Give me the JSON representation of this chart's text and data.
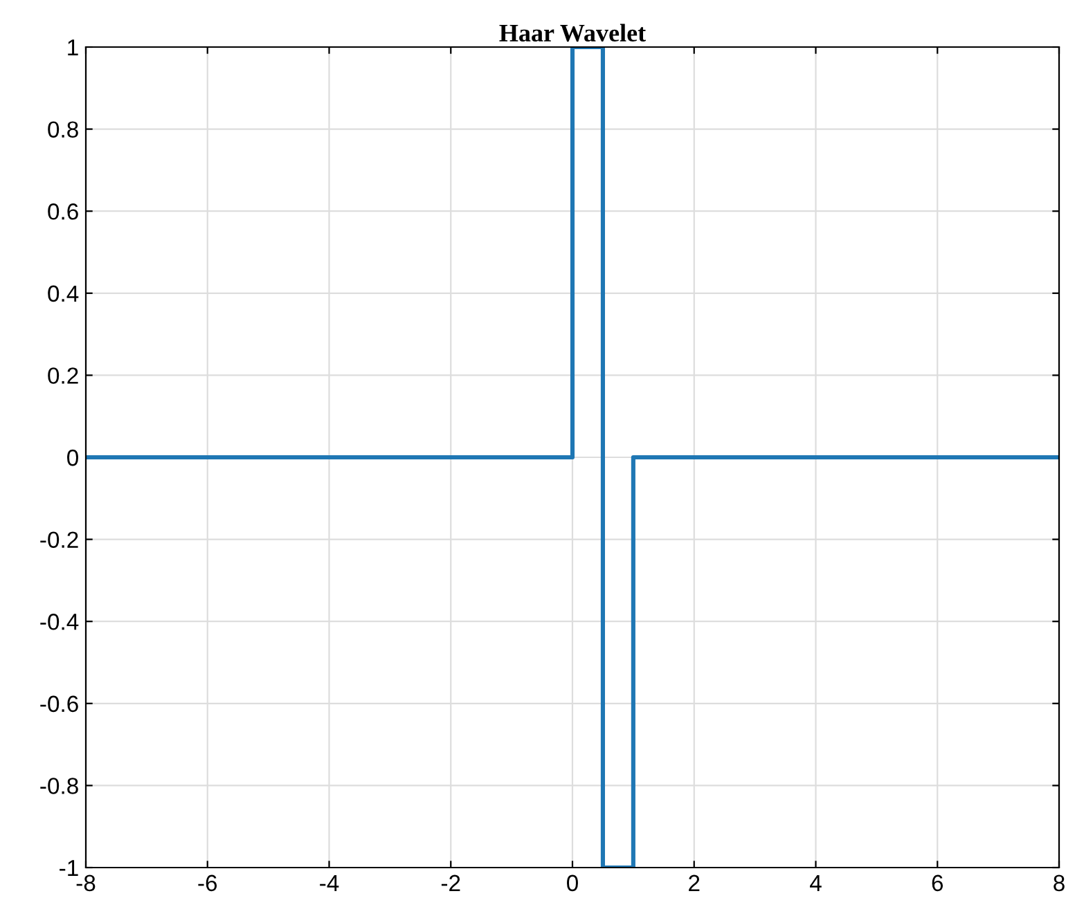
{
  "chart_data": {
    "type": "line",
    "title": "Haar Wavelet",
    "x": [
      -8,
      0,
      0,
      0.5,
      0.5,
      1,
      1,
      8
    ],
    "series": [
      {
        "color": "#1f77b4",
        "values": [
          0,
          0,
          1,
          1,
          -1,
          -1,
          0,
          0
        ]
      }
    ],
    "xlim": [
      -8,
      8
    ],
    "xticks": [
      -8,
      -6,
      -4,
      -2,
      0,
      2,
      4,
      6,
      8
    ],
    "ylim": [
      -1,
      1
    ],
    "yticks": [
      -1,
      -0.8,
      -0.6,
      -0.4,
      -0.2,
      0,
      0.2,
      0.4,
      0.6,
      0.8,
      1
    ],
    "grid": true,
    "line_style": "solid"
  }
}
